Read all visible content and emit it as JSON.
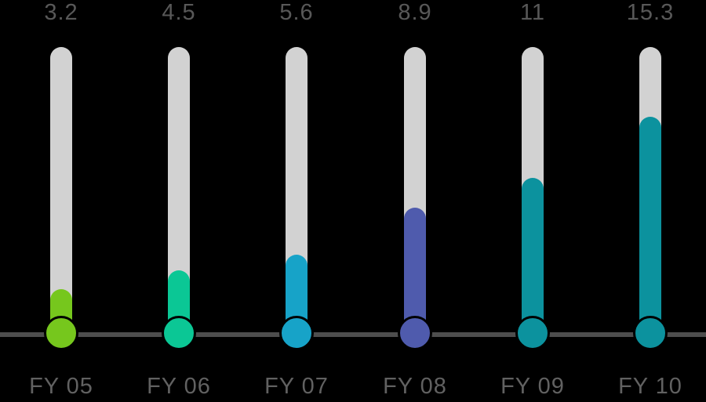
{
  "chart_data": {
    "type": "bar",
    "subtype": "thermometer-lollipop",
    "title": "",
    "xlabel": "",
    "ylabel": "",
    "categories": [
      "FY 05",
      "FY 06",
      "FY 07",
      "FY 08",
      "FY 09",
      "FY 10"
    ],
    "values": [
      3.2,
      4.5,
      5.6,
      8.9,
      11,
      15.3
    ],
    "value_labels": [
      "3.2",
      "4.5",
      "5.6",
      "8.9",
      "11",
      "15.3"
    ],
    "bar_colors": [
      "#76C71D",
      "#0BC795",
      "#17A3C8",
      "#4F5BAD",
      "#0C929E",
      "#0C929E"
    ],
    "track_color": "#D2D2D2",
    "axis_line_color": "#4D4D4D",
    "value_label_color": "#585858",
    "category_label_color": "#616161",
    "background_color": "#000000",
    "ylim": [
      0,
      20
    ],
    "grid": false,
    "legend": false,
    "baseline": "x-axis line crossed by colored bulb circles"
  }
}
